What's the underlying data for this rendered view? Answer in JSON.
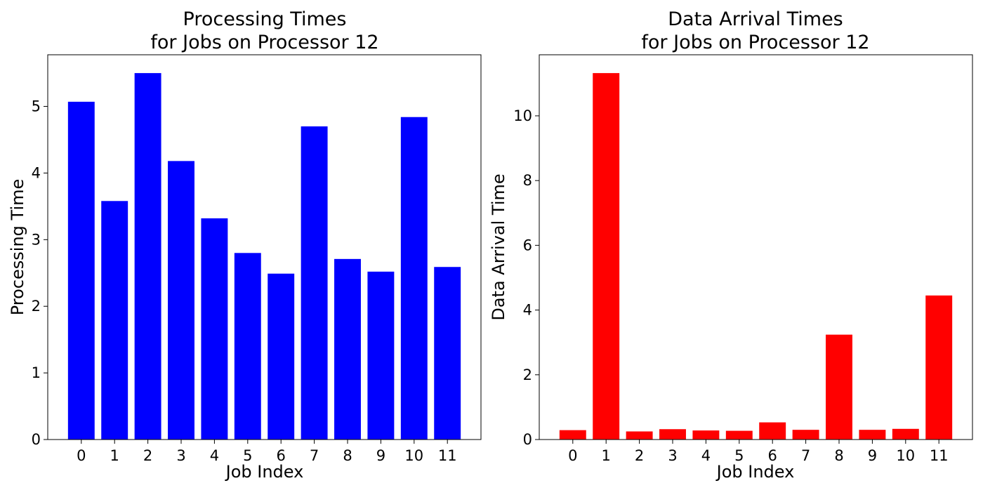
{
  "chart_data": [
    {
      "type": "bar",
      "title_line1": "Processing Times",
      "title_line2": "for Jobs on Processor 12",
      "xlabel": "Job Index",
      "ylabel": "Processing Time",
      "categories": [
        "0",
        "1",
        "2",
        "3",
        "4",
        "5",
        "6",
        "7",
        "8",
        "9",
        "10",
        "11"
      ],
      "values": [
        5.07,
        3.58,
        5.5,
        4.18,
        3.32,
        2.8,
        2.49,
        4.7,
        2.71,
        2.52,
        4.84,
        2.59
      ],
      "ylim": [
        0,
        5.775
      ],
      "yticks": [
        0,
        1,
        2,
        3,
        4,
        5
      ],
      "bar_color": "#0000ff",
      "grid": false,
      "legend": "none"
    },
    {
      "type": "bar",
      "title_line1": "Data Arrival Times",
      "title_line2": "for Jobs on Processor 12",
      "xlabel": "Job Index",
      "ylabel": "Data Arrival Time",
      "categories": [
        "0",
        "1",
        "2",
        "3",
        "4",
        "5",
        "6",
        "7",
        "8",
        "9",
        "10",
        "11"
      ],
      "values": [
        0.29,
        11.32,
        0.25,
        0.32,
        0.28,
        0.27,
        0.53,
        0.3,
        3.24,
        0.3,
        0.33,
        4.45
      ],
      "ylim": [
        0,
        11.886
      ],
      "yticks": [
        0,
        2,
        4,
        6,
        8,
        10
      ],
      "bar_color": "#ff0000",
      "grid": false,
      "legend": "none"
    }
  ]
}
